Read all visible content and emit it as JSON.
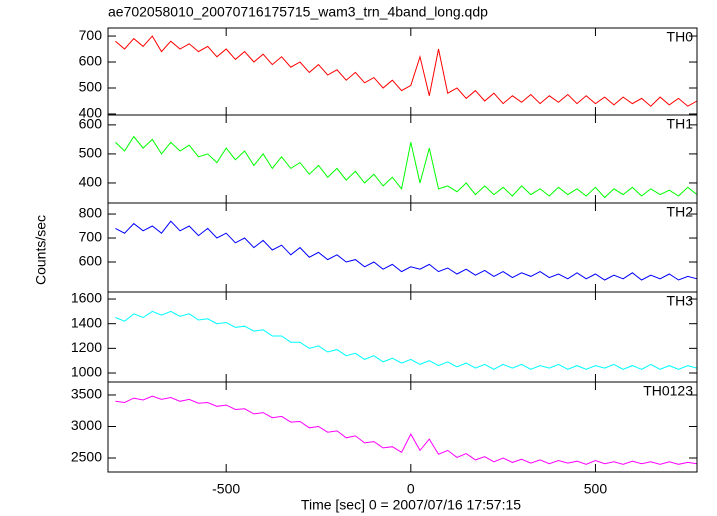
{
  "chart_data": {
    "type": "line",
    "title": "ae702058010_20070716175715_wam3_trn_4band_long.qdp",
    "xlabel": "Time [sec] 0 = 2007/07/16 17:57:15",
    "ylabel": "Counts/sec",
    "xlim": [
      -820,
      775
    ],
    "xticks": [
      -500,
      0,
      500
    ],
    "x": [
      -800,
      -775,
      -750,
      -725,
      -700,
      -675,
      -650,
      -625,
      -600,
      -575,
      -550,
      -525,
      -500,
      -475,
      -450,
      -425,
      -400,
      -375,
      -350,
      -325,
      -300,
      -275,
      -250,
      -225,
      -200,
      -175,
      -150,
      -125,
      -100,
      -75,
      -50,
      -25,
      0,
      25,
      50,
      75,
      100,
      125,
      150,
      175,
      200,
      225,
      250,
      275,
      300,
      325,
      350,
      375,
      400,
      425,
      450,
      475,
      500,
      525,
      550,
      575,
      600,
      625,
      650,
      675,
      700,
      725,
      750,
      775
    ],
    "series": [
      {
        "name": "TH0",
        "color": "#ff0000",
        "ylim": [
          396,
          731
        ],
        "yticks": [
          400,
          500,
          600,
          700
        ],
        "values": [
          680,
          650,
          690,
          660,
          700,
          640,
          680,
          650,
          670,
          640,
          660,
          620,
          650,
          610,
          640,
          600,
          630,
          590,
          620,
          580,
          600,
          560,
          590,
          550,
          570,
          530,
          560,
          520,
          540,
          500,
          530,
          490,
          510,
          620,
          470,
          650,
          480,
          500,
          460,
          490,
          450,
          480,
          440,
          470,
          445,
          475,
          440,
          470,
          445,
          475,
          440,
          470,
          440,
          465,
          435,
          465,
          440,
          460,
          430,
          465,
          435,
          460,
          430,
          450
        ]
      },
      {
        "name": "TH1",
        "color": "#00ff00",
        "ylim": [
          331,
          634
        ],
        "yticks": [
          400,
          500,
          600
        ],
        "values": [
          540,
          510,
          560,
          520,
          550,
          500,
          540,
          510,
          530,
          490,
          500,
          470,
          520,
          480,
          510,
          460,
          500,
          450,
          490,
          450,
          470,
          430,
          460,
          420,
          450,
          410,
          440,
          400,
          430,
          390,
          420,
          380,
          540,
          400,
          520,
          380,
          390,
          370,
          400,
          360,
          390,
          360,
          385,
          355,
          390,
          360,
          380,
          355,
          385,
          360,
          380,
          355,
          385,
          350,
          380,
          360,
          385,
          355,
          380,
          360,
          375,
          355,
          385,
          360
        ]
      },
      {
        "name": "TH2",
        "color": "#0000ff",
        "ylim": [
          475,
          846
        ],
        "yticks": [
          600,
          700,
          800
        ],
        "values": [
          740,
          720,
          760,
          730,
          750,
          720,
          770,
          730,
          750,
          710,
          740,
          700,
          720,
          680,
          700,
          660,
          690,
          650,
          670,
          630,
          660,
          620,
          640,
          610,
          630,
          600,
          610,
          580,
          600,
          570,
          590,
          560,
          580,
          570,
          590,
          560,
          575,
          550,
          570,
          545,
          565,
          540,
          560,
          535,
          555,
          540,
          560,
          535,
          550,
          530,
          555,
          530,
          550,
          525,
          545,
          530,
          555,
          525,
          545,
          530,
          550,
          525,
          540,
          530
        ]
      },
      {
        "name": "TH3",
        "color": "#00ffff",
        "ylim": [
          927,
          1657
        ],
        "yticks": [
          1000,
          1200,
          1400,
          1600
        ],
        "values": [
          1450,
          1420,
          1480,
          1450,
          1500,
          1470,
          1500,
          1460,
          1480,
          1430,
          1440,
          1400,
          1410,
          1370,
          1380,
          1340,
          1350,
          1300,
          1300,
          1250,
          1250,
          1200,
          1220,
          1170,
          1190,
          1140,
          1160,
          1110,
          1140,
          1090,
          1120,
          1080,
          1110,
          1070,
          1100,
          1060,
          1090,
          1050,
          1080,
          1040,
          1070,
          1030,
          1070,
          1040,
          1070,
          1030,
          1060,
          1040,
          1070,
          1030,
          1060,
          1030,
          1060,
          1040,
          1070,
          1030,
          1060,
          1030,
          1070,
          1030,
          1060,
          1030,
          1060,
          1040
        ]
      },
      {
        "name": "TH0123",
        "color": "#ff00ff",
        "ylim": [
          2278,
          3706
        ],
        "yticks": [
          2500,
          3000,
          3500
        ],
        "values": [
          3400,
          3380,
          3450,
          3420,
          3480,
          3430,
          3460,
          3400,
          3430,
          3370,
          3380,
          3320,
          3340,
          3270,
          3280,
          3200,
          3220,
          3140,
          3160,
          3070,
          3080,
          2980,
          3000,
          2910,
          2930,
          2820,
          2850,
          2740,
          2760,
          2660,
          2680,
          2590,
          2880,
          2620,
          2800,
          2560,
          2620,
          2510,
          2570,
          2470,
          2520,
          2440,
          2500,
          2430,
          2480,
          2420,
          2470,
          2410,
          2460,
          2420,
          2450,
          2400,
          2460,
          2410,
          2440,
          2400,
          2450,
          2410,
          2440,
          2400,
          2440,
          2400,
          2430,
          2410
        ]
      }
    ]
  }
}
